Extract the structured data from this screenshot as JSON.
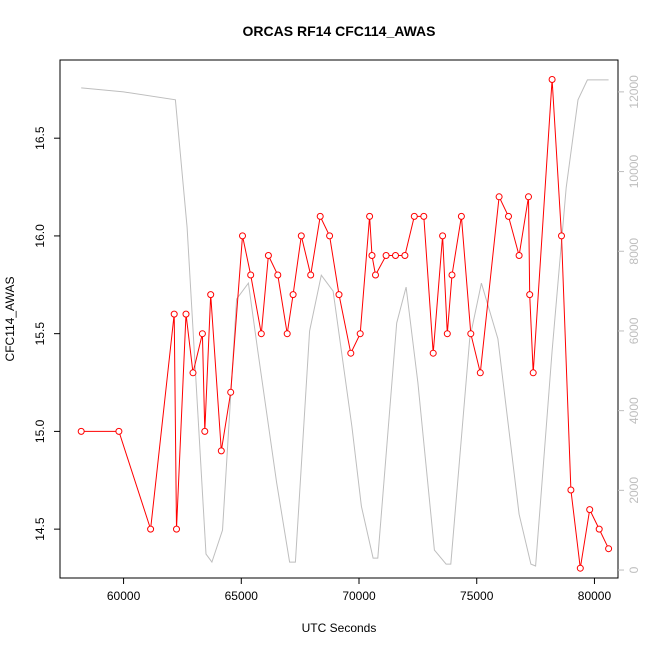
{
  "chart_data": {
    "type": "line",
    "title": "ORCAS RF14 CFC114_AWAS",
    "xlabel": "UTC Seconds",
    "ylabel": "CFC114_AWAS",
    "xlim": [
      57300,
      81000
    ],
    "ylim": [
      14.25,
      16.9
    ],
    "y2lim": [
      -200,
      12800
    ],
    "xticks": [
      60000,
      65000,
      70000,
      75000,
      80000
    ],
    "xtick_labels": [
      "60000",
      "65000",
      "70000",
      "75000",
      "80000"
    ],
    "yticks": [
      14.5,
      15.0,
      15.5,
      16.0,
      16.5
    ],
    "ytick_labels": [
      "14.5",
      "15.0",
      "15.5",
      "16.0",
      "16.5"
    ],
    "y2ticks": [
      0,
      2000,
      4000,
      6000,
      8000,
      10000,
      12000
    ],
    "y2tick_labels": [
      "0",
      "2000",
      "4000",
      "6000",
      "8000",
      "10000",
      "12000"
    ],
    "grid": false,
    "colors": {
      "series": "#ff0000",
      "altitude": "#bebebe",
      "axes": "#000000"
    },
    "series": [
      {
        "axis": "left",
        "x": [
          58200,
          59800,
          61150,
          62150,
          62250,
          62650,
          62950,
          63350,
          63450,
          63700,
          64150,
          64550,
          65050,
          65400,
          65850,
          66150,
          66550,
          66950,
          67200,
          67550,
          67950,
          68350,
          68750,
          69150,
          69650,
          70050,
          70450,
          70550,
          70700,
          71150,
          71550,
          71950,
          72350,
          72750,
          73150,
          73550,
          73750,
          73950,
          74350,
          74750,
          75150,
          75950,
          76350,
          76800,
          77200,
          77250,
          77400,
          78200,
          78600,
          79000,
          79400,
          79800,
          80200,
          80600
        ],
        "y": [
          15.0,
          15.0,
          14.5,
          15.6,
          14.5,
          15.6,
          15.3,
          15.5,
          15.0,
          15.7,
          14.9,
          15.2,
          16.0,
          15.8,
          15.5,
          15.9,
          15.8,
          15.5,
          15.7,
          16.0,
          15.8,
          16.1,
          16.0,
          15.7,
          15.4,
          15.5,
          16.1,
          15.9,
          15.8,
          15.9,
          15.9,
          15.9,
          16.1,
          16.1,
          15.4,
          16.0,
          15.5,
          15.8,
          16.1,
          15.5,
          15.3,
          16.2,
          16.1,
          15.9,
          16.2,
          15.7,
          15.3,
          16.8,
          16.0,
          14.7,
          14.3,
          14.6,
          14.5,
          14.4
        ]
      },
      {
        "axis": "right",
        "x": [
          58200,
          60000,
          62200,
          62700,
          63500,
          63750,
          64200,
          64800,
          65300,
          65700,
          66500,
          67050,
          67300,
          67900,
          68400,
          68900,
          69700,
          70100,
          70600,
          70800,
          71600,
          72000,
          72500,
          73200,
          73700,
          73900,
          74700,
          75200,
          75900,
          76800,
          77300,
          77500,
          78200,
          78800,
          79300,
          79700,
          80600
        ],
        "y": [
          12100,
          12000,
          11800,
          8600,
          400,
          200,
          1000,
          6800,
          7200,
          5500,
          2200,
          200,
          200,
          6000,
          7400,
          7000,
          3600,
          1600,
          300,
          300,
          6200,
          7100,
          4700,
          500,
          150,
          150,
          5800,
          7200,
          5800,
          1400,
          150,
          100,
          5500,
          9600,
          11800,
          12300,
          12300
        ]
      }
    ]
  }
}
